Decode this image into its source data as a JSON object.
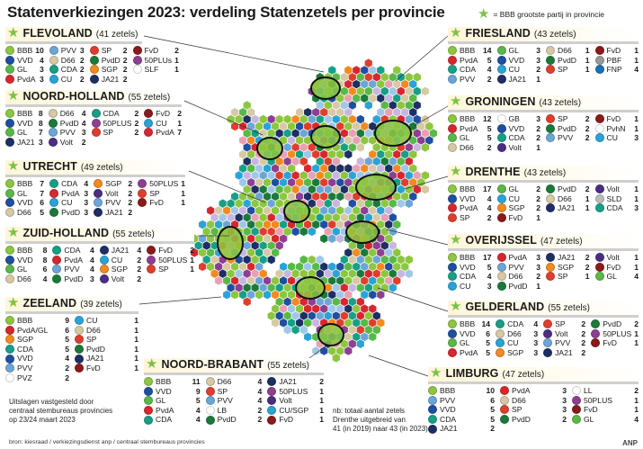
{
  "title": "Statenverkiezingen 2023: verdeling Statenzetels per provincie",
  "legend": {
    "star": "★",
    "text": "= BBB grootste partij in provincie"
  },
  "party_colors": {
    "BBB": "#8dc63f",
    "VVD": "#1f4fa0",
    "GL": "#58b947",
    "PvdA": "#d8262f",
    "PVV": "#6ca6d6",
    "D66": "#d6c9a3",
    "CDA": "#16a085",
    "SP": "#e03e2d",
    "PvdD": "#1b7a3a",
    "CU": "#2aa3d6",
    "SGP": "#f28a1f",
    "JA21": "#1d2f63",
    "50PLUS": "#8e3f92",
    "SLF": "#ffffff",
    "FvD": "#8b1a1a",
    "PBF": "#999999",
    "FNP": "#1b6fb5",
    "GB": "#ffffff",
    "PvhN": "#ffffff",
    "Volt": "#4b2e83",
    "LB": "#ffffff",
    "PvdA/GL": "#d8262f",
    "PVZ": "#ffffff",
    "CU/SGP": "#2aa3d6",
    "LL": "#ffffff"
  },
  "provinces": [
    {
      "name": "FLEVOLAND",
      "seats": "(41 zetels)",
      "star": "★",
      "rows": [
        [
          "BBB",
          "10"
        ],
        [
          "PVV",
          "3"
        ],
        [
          "SP",
          "2"
        ],
        [
          "FvD",
          "2"
        ],
        [
          "VVD",
          "4"
        ],
        [
          "D66",
          "2"
        ],
        [
          "PvdD",
          "2"
        ],
        [
          "50PLUs",
          "1"
        ],
        [
          "GL",
          "3"
        ],
        [
          "CDA",
          "2"
        ],
        [
          "SGP",
          "2"
        ],
        [
          "SLF",
          "1"
        ],
        [
          "PvdA",
          "3"
        ],
        [
          "CU",
          "2"
        ],
        [
          "JA21",
          "2"
        ]
      ]
    },
    {
      "name": "NOORD-HOLLAND",
      "seats": "(55 zetels)",
      "star": "★",
      "rows": [
        [
          "BBB",
          "8"
        ],
        [
          "D66",
          "4"
        ],
        [
          "CDA",
          "2"
        ],
        [
          "FvD",
          "2"
        ],
        [
          "VVD",
          "8"
        ],
        [
          "PvdD",
          "4"
        ],
        [
          "50PLUS",
          "2"
        ],
        [
          "CU",
          "1"
        ],
        [
          "GL",
          "7"
        ],
        [
          "PVV",
          "3"
        ],
        [
          "SP",
          "2"
        ],
        [
          "PvdA",
          "7"
        ],
        [
          "JA21",
          "3"
        ],
        [
          "Volt",
          "2"
        ]
      ]
    },
    {
      "name": "UTRECHT",
      "seats": "(49 zetels)",
      "star": "★",
      "rows": [
        [
          "BBB",
          "7"
        ],
        [
          "CDA",
          "4"
        ],
        [
          "SGP",
          "2"
        ],
        [
          "50PLUS",
          "1"
        ],
        [
          "GL",
          "7"
        ],
        [
          "PvdA",
          "3"
        ],
        [
          "Volt",
          "2"
        ],
        [
          "SP",
          "1"
        ],
        [
          "VVD",
          "6"
        ],
        [
          "CU",
          "3"
        ],
        [
          "PVV",
          "2"
        ],
        [
          "FvD",
          "1"
        ],
        [
          "D66",
          "5"
        ],
        [
          "PvdD",
          "3"
        ],
        [
          "JA21",
          "2"
        ]
      ]
    },
    {
      "name": "ZUID-HOLLAND",
      "seats": "(55 zetels)",
      "star": "★",
      "rows": [
        [
          "BBB",
          "8"
        ],
        [
          "CDA",
          "4"
        ],
        [
          "JA21",
          "4"
        ],
        [
          "FvD",
          "2"
        ],
        [
          "VVD",
          "8"
        ],
        [
          "PvdA",
          "4"
        ],
        [
          "CU",
          "2"
        ],
        [
          "50PLUS",
          "1"
        ],
        [
          "GL",
          "6"
        ],
        [
          "PVV",
          "4"
        ],
        [
          "SGP",
          "2"
        ],
        [
          "SP",
          "1"
        ],
        [
          "D66",
          "4"
        ],
        [
          "PvdD",
          "3"
        ],
        [
          "Volt",
          "2"
        ]
      ]
    },
    {
      "name": "ZEELAND",
      "seats": "(39 zetels)",
      "star": "★",
      "rows": [
        [
          "BBB",
          "9"
        ],
        [
          "CU",
          "1"
        ],
        [
          "PvdA/GL",
          "6"
        ],
        [
          "D66",
          "1"
        ],
        [
          "SGP",
          "5"
        ],
        [
          "SP",
          "1"
        ],
        [
          "CDA",
          "5"
        ],
        [
          "PvdD",
          "1"
        ],
        [
          "VVD",
          "4"
        ],
        [
          "JA21",
          "1"
        ],
        [
          "PVV",
          "2"
        ],
        [
          "FvD",
          "1"
        ],
        [
          "PVZ",
          "2"
        ]
      ]
    },
    {
      "name": "NOORD-BRABANT",
      "seats": "(55 zetels)",
      "star": "★",
      "rows": [
        [
          "BBB",
          "11"
        ],
        [
          "D66",
          "4"
        ],
        [
          "JA21",
          "2"
        ],
        [
          "VVD",
          "9"
        ],
        [
          "SP",
          "4"
        ],
        [
          "50PLUS",
          "1"
        ],
        [
          "GL",
          "5"
        ],
        [
          "PVV",
          "4"
        ],
        [
          "Volt",
          "1"
        ],
        [
          "PvdA",
          "4"
        ],
        [
          "LB",
          "2"
        ],
        [
          "CU/SGP",
          "1"
        ],
        [
          "CDA",
          "4"
        ],
        [
          "PvdD",
          "2"
        ],
        [
          "FvD",
          "1"
        ]
      ]
    },
    {
      "name": "FRIESLAND",
      "seats": "(43 zetels)",
      "star": "★",
      "rows": [
        [
          "BBB",
          "14"
        ],
        [
          "GL",
          "3"
        ],
        [
          "D66",
          "1"
        ],
        [
          "FvD",
          "1"
        ],
        [
          "PvdA",
          "5"
        ],
        [
          "VVD",
          "3"
        ],
        [
          "PvdD",
          "1"
        ],
        [
          "PBF",
          "1"
        ],
        [
          "CDA",
          "4"
        ],
        [
          "CU",
          "2"
        ],
        [
          "SP",
          "1"
        ],
        [
          "FNP",
          "4"
        ],
        [
          "PVV",
          "2"
        ],
        [
          "JA21",
          "1"
        ]
      ]
    },
    {
      "name": "GRONINGEN",
      "seats": "(43 zetels)",
      "star": "★",
      "rows": [
        [
          "BBB",
          "12"
        ],
        [
          "GB",
          "3"
        ],
        [
          "SP",
          "2"
        ],
        [
          "FvD",
          "1"
        ],
        [
          "PvdA",
          "5"
        ],
        [
          "VVD",
          "2"
        ],
        [
          "PvdD",
          "2"
        ],
        [
          "PvhN",
          "1"
        ],
        [
          "GL",
          "5"
        ],
        [
          "CDA",
          "2"
        ],
        [
          "PVV",
          "2"
        ],
        [
          "CU",
          "3"
        ],
        [
          "D66",
          "2"
        ],
        [
          "Volt",
          "1"
        ]
      ]
    },
    {
      "name": "DRENTHE",
      "seats": "(43 zetels)",
      "star": "★",
      "rows": [
        [
          "BBB",
          "17"
        ],
        [
          "GL",
          "2"
        ],
        [
          "PvdD",
          "2"
        ],
        [
          "Volt",
          "1"
        ],
        [
          "VVD",
          "4"
        ],
        [
          "CU",
          "2"
        ],
        [
          "D66",
          "1"
        ],
        [
          "SLD",
          "1"
        ],
        [
          "PvdA",
          "4"
        ],
        [
          "SGP",
          "2"
        ],
        [
          "JA21",
          "1"
        ],
        [
          "CDA",
          "3"
        ],
        [
          "SP",
          "2"
        ],
        [
          "FvD",
          "1"
        ]
      ]
    },
    {
      "name": "OVERIJSSEL",
      "seats": "(47 zetels)",
      "star": "★",
      "rows": [
        [
          "BBB",
          "17"
        ],
        [
          "PvdA",
          "3"
        ],
        [
          "JA21",
          "2"
        ],
        [
          "Volt",
          "1"
        ],
        [
          "VVD",
          "5"
        ],
        [
          "PVV",
          "3"
        ],
        [
          "SGP",
          "2"
        ],
        [
          "FvD",
          "1"
        ],
        [
          "CDA",
          "4"
        ],
        [
          "D66",
          "2"
        ],
        [
          "SP",
          "1"
        ],
        [
          "GL",
          "4"
        ],
        [
          "CU",
          "3"
        ],
        [
          "PvdD",
          "1"
        ]
      ]
    },
    {
      "name": "GELDERLAND",
      "seats": "(55 zetels)",
      "star": "★",
      "rows": [
        [
          "BBB",
          "14"
        ],
        [
          "CDA",
          "4"
        ],
        [
          "SP",
          "2"
        ],
        [
          "PvdD",
          "2"
        ],
        [
          "VVD",
          "6"
        ],
        [
          "D66",
          "3"
        ],
        [
          "Volt",
          "2"
        ],
        [
          "50PLUS",
          "1"
        ],
        [
          "GL",
          "5"
        ],
        [
          "CU",
          "3"
        ],
        [
          "PVV",
          "2"
        ],
        [
          "FvD",
          "1"
        ],
        [
          "PvdA",
          "5"
        ],
        [
          "SGP",
          "3"
        ],
        [
          "JA21",
          "2"
        ]
      ]
    },
    {
      "name": "LIMBURG",
      "seats": "(47 zetels)",
      "star": "★",
      "rows": [
        [
          "BBB",
          "10"
        ],
        [
          "PvdA",
          "3"
        ],
        [
          "LL",
          "2"
        ],
        [
          "PVV",
          "6"
        ],
        [
          "D66",
          "3"
        ],
        [
          "50PLUS",
          "1"
        ],
        [
          "VVD",
          "5"
        ],
        [
          "SP",
          "3"
        ],
        [
          "FvD",
          "1"
        ],
        [
          "CDA",
          "5"
        ],
        [
          "PvdD",
          "2"
        ],
        [
          "GL",
          "4"
        ],
        [
          "JA21",
          "2"
        ]
      ]
    }
  ],
  "footer": {
    "note_left": [
      "Uitslagen vastgesteld door",
      "centraal stembureaus provincies",
      "op 23/24 maart 2023"
    ],
    "note_mid": [
      "nb: totaal aantal zetels",
      "Drenthe uitgebreid van",
      "41 (in 2019) naar 43 (in 2023)"
    ],
    "source": "bron: kiesraad / verkiezingsdienst anp / centraal stembureaus provincies",
    "logo": "ANP"
  }
}
